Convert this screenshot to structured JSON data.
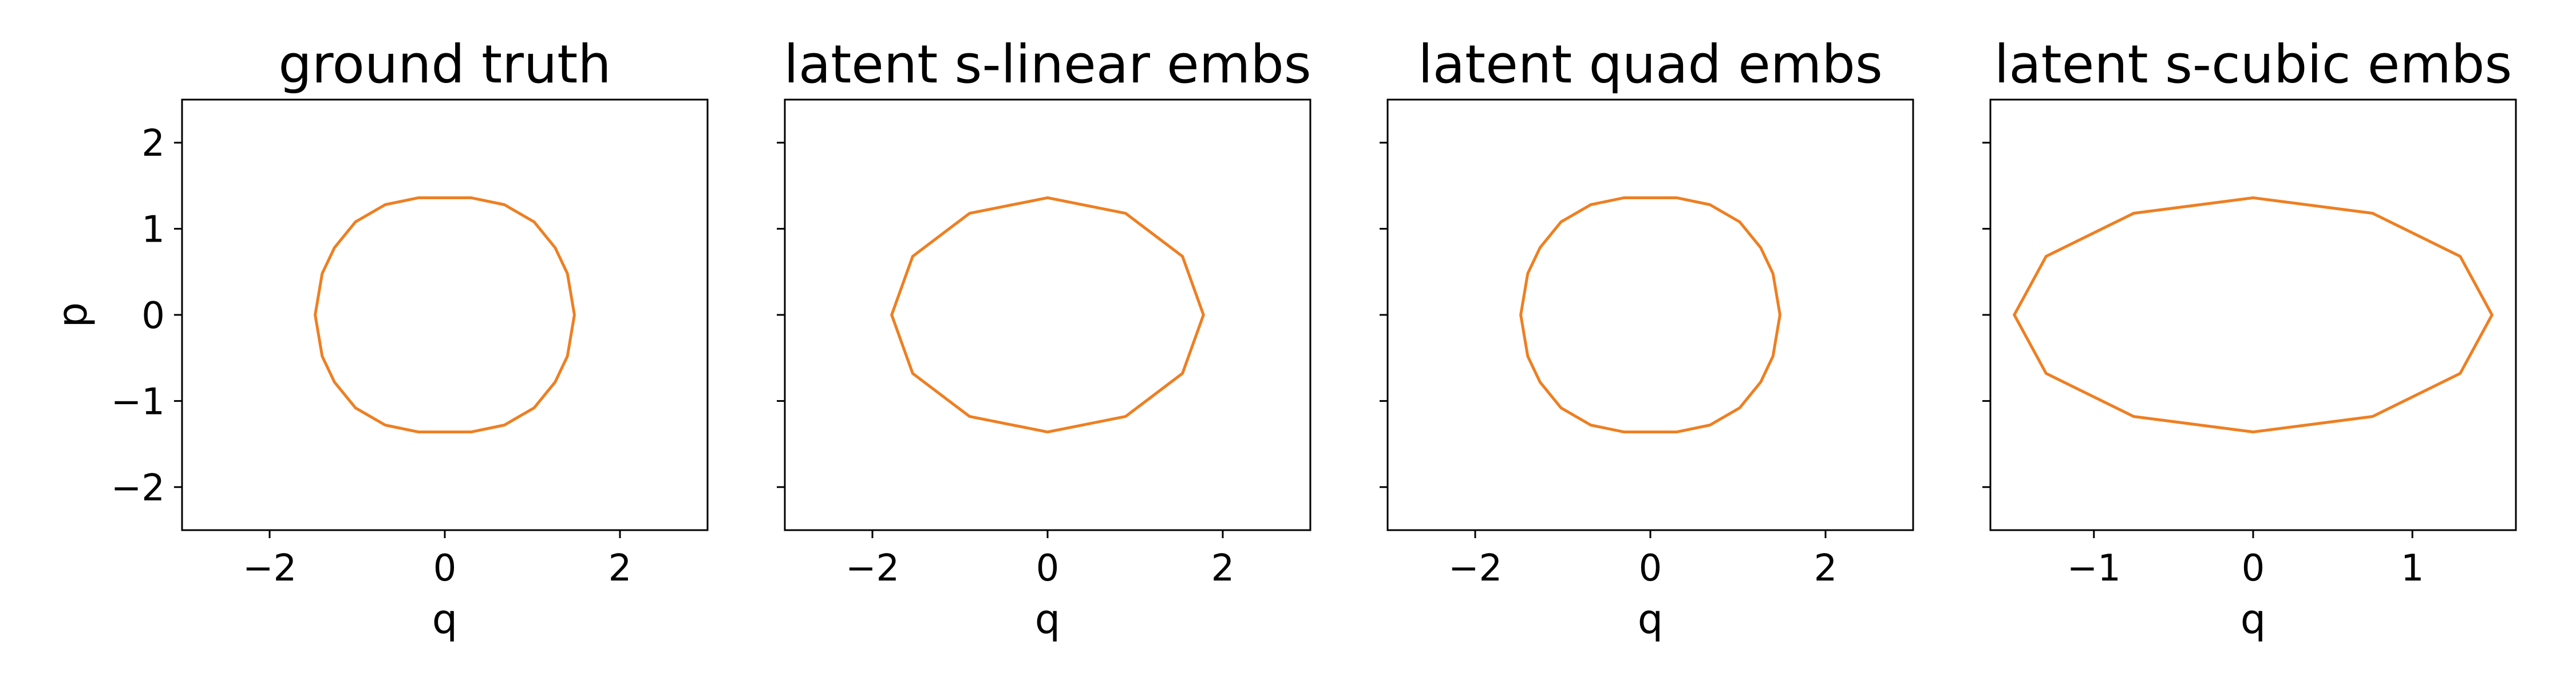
{
  "figure": {
    "curve_color": "#ee7f22"
  },
  "chart_data": [
    {
      "type": "line",
      "title": "ground truth",
      "xlabel": "q",
      "ylabel": "p",
      "xlim": [
        -3,
        3
      ],
      "ylim": [
        -2.5,
        2.5
      ],
      "xticks": [
        -2,
        0,
        2
      ],
      "xtick_labels": [
        "−2",
        "0",
        "2"
      ],
      "yticks": [
        -2,
        -1,
        0,
        1,
        2
      ],
      "ytick_labels": [
        "−2",
        "−1",
        "0",
        "1",
        "2"
      ],
      "series": [
        {
          "x": [
            1.48,
            1.4,
            1.26,
            1.02,
            0.68,
            0.3,
            0.0,
            -0.3,
            -0.68,
            -1.02,
            -1.26,
            -1.4,
            -1.48,
            -1.4,
            -1.26,
            -1.02,
            -0.68,
            -0.3,
            0.0,
            0.3,
            0.68,
            1.02,
            1.26,
            1.4,
            1.48
          ],
          "y": [
            0.0,
            0.48,
            0.78,
            1.08,
            1.28,
            1.36,
            1.36,
            1.36,
            1.28,
            1.08,
            0.78,
            0.48,
            0.0,
            -0.48,
            -0.78,
            -1.08,
            -1.28,
            -1.36,
            -1.36,
            -1.36,
            -1.28,
            -1.08,
            -0.78,
            -0.48,
            0.0
          ]
        }
      ]
    },
    {
      "type": "line",
      "title": "latent s-linear embs",
      "xlabel": "q",
      "ylabel": "",
      "xlim": [
        -3,
        3
      ],
      "ylim": [
        -2.5,
        2.5
      ],
      "xticks": [
        -2,
        0,
        2
      ],
      "xtick_labels": [
        "−2",
        "0",
        "2"
      ],
      "yticks": [
        -2,
        -1,
        0,
        1,
        2
      ],
      "ytick_labels": [],
      "series": [
        {
          "x": [
            1.78,
            1.54,
            0.89,
            0.0,
            -0.89,
            -1.54,
            -1.78,
            -1.54,
            -0.89,
            0.0,
            0.89,
            1.54,
            1.78
          ],
          "y": [
            0.0,
            0.68,
            1.18,
            1.36,
            1.18,
            0.68,
            0.0,
            -0.68,
            -1.18,
            -1.36,
            -1.18,
            -0.68,
            0.0
          ]
        }
      ]
    },
    {
      "type": "line",
      "title": "latent quad embs",
      "xlabel": "q",
      "ylabel": "",
      "xlim": [
        -3,
        3
      ],
      "ylim": [
        -2.5,
        2.5
      ],
      "xticks": [
        -2,
        0,
        2
      ],
      "xtick_labels": [
        "−2",
        "0",
        "2"
      ],
      "yticks": [
        -2,
        -1,
        0,
        1,
        2
      ],
      "ytick_labels": [],
      "series": [
        {
          "x": [
            1.48,
            1.4,
            1.26,
            1.02,
            0.68,
            0.3,
            0.0,
            -0.3,
            -0.68,
            -1.02,
            -1.26,
            -1.4,
            -1.48,
            -1.4,
            -1.26,
            -1.02,
            -0.68,
            -0.3,
            0.0,
            0.3,
            0.68,
            1.02,
            1.26,
            1.4,
            1.48
          ],
          "y": [
            0.0,
            0.48,
            0.78,
            1.08,
            1.28,
            1.36,
            1.36,
            1.36,
            1.28,
            1.08,
            0.78,
            0.48,
            0.0,
            -0.48,
            -0.78,
            -1.08,
            -1.28,
            -1.36,
            -1.36,
            -1.36,
            -1.28,
            -1.08,
            -0.78,
            -0.48,
            0.0
          ]
        }
      ]
    },
    {
      "type": "line",
      "title": "latent s-cubic embs",
      "xlabel": "q",
      "ylabel": "",
      "xlim": [
        -1.65,
        1.65
      ],
      "ylim": [
        -2.5,
        2.5
      ],
      "xticks": [
        -1,
        0,
        1
      ],
      "xtick_labels": [
        "−1",
        "0",
        "1"
      ],
      "yticks": [
        -2,
        -1,
        0,
        1,
        2
      ],
      "ytick_labels": [],
      "series": [
        {
          "x": [
            1.5,
            1.3,
            0.75,
            0.0,
            -0.75,
            -1.3,
            -1.5,
            -1.3,
            -0.75,
            0.0,
            0.75,
            1.3,
            1.5
          ],
          "y": [
            0.0,
            0.68,
            1.18,
            1.36,
            1.18,
            0.68,
            0.0,
            -0.68,
            -1.18,
            -1.36,
            -1.18,
            -0.68,
            0.0
          ]
        }
      ]
    }
  ]
}
